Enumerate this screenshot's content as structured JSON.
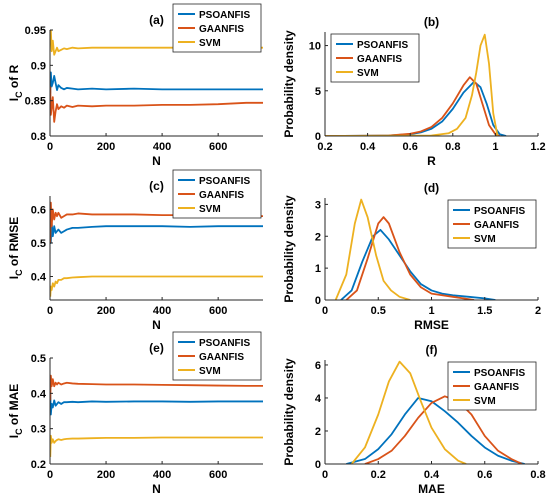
{
  "colors": {
    "psoanfis": "#0072BD",
    "gaanfis": "#D95319",
    "svm": "#EDB120"
  },
  "chart_data": [
    {
      "id": "a",
      "type": "line",
      "title": "(a)",
      "xlabel": "N",
      "ylabel_main": "I",
      "ylabel_sub": "C",
      "ylabel_rest": " of R",
      "xlim": [
        0,
        760
      ],
      "ylim": [
        0.8,
        0.95
      ],
      "xticks": [
        0,
        200,
        400,
        600
      ],
      "xtick_labels": [
        "0",
        "200",
        "400",
        "600"
      ],
      "yticks": [
        0.8,
        0.85,
        0.9,
        0.95
      ],
      "ytick_labels": [
        "0.8",
        "0.85",
        "0.9",
        "0.95"
      ],
      "legend": "top-right",
      "series": [
        {
          "name": "PSOANFIS",
          "color": "#0072BD",
          "x": [
            1,
            3,
            6,
            10,
            15,
            20,
            25,
            30,
            40,
            50,
            60,
            80,
            100,
            150,
            200,
            300,
            400,
            500,
            600,
            700,
            760
          ],
          "y": [
            0.86,
            0.89,
            0.87,
            0.875,
            0.885,
            0.875,
            0.865,
            0.872,
            0.868,
            0.866,
            0.868,
            0.867,
            0.866,
            0.867,
            0.866,
            0.867,
            0.866,
            0.866,
            0.866,
            0.866,
            0.866
          ]
        },
        {
          "name": "GAANFIS",
          "color": "#D95319",
          "x": [
            1,
            3,
            6,
            10,
            15,
            20,
            25,
            30,
            40,
            50,
            60,
            80,
            100,
            150,
            200,
            300,
            400,
            500,
            600,
            700,
            760
          ],
          "y": [
            0.87,
            0.83,
            0.84,
            0.855,
            0.82,
            0.835,
            0.845,
            0.838,
            0.842,
            0.84,
            0.843,
            0.841,
            0.843,
            0.842,
            0.843,
            0.843,
            0.844,
            0.844,
            0.845,
            0.847,
            0.847
          ]
        },
        {
          "name": "SVM",
          "color": "#EDB120",
          "x": [
            1,
            3,
            6,
            10,
            15,
            20,
            25,
            30,
            40,
            50,
            60,
            80,
            100,
            150,
            200,
            300,
            400,
            500,
            600,
            700,
            760
          ],
          "y": [
            0.93,
            0.95,
            0.92,
            0.935,
            0.915,
            0.92,
            0.925,
            0.92,
            0.922,
            0.924,
            0.923,
            0.925,
            0.924,
            0.925,
            0.925,
            0.925,
            0.925,
            0.925,
            0.925,
            0.925,
            0.925
          ]
        }
      ]
    },
    {
      "id": "b",
      "type": "line",
      "title": "(b)",
      "xlabel": "R",
      "ylabel": "Probability density",
      "xlim": [
        0.2,
        1.2
      ],
      "ylim": [
        0,
        11.5
      ],
      "xticks": [
        0.2,
        0.4,
        0.6,
        0.8,
        1.0,
        1.2
      ],
      "xtick_labels": [
        "0.2",
        "0.4",
        "0.6",
        "0.8",
        "1",
        "1.2"
      ],
      "yticks": [
        0,
        5,
        10
      ],
      "ytick_labels": [
        "0",
        "5",
        "10"
      ],
      "legend": "top-left",
      "series": [
        {
          "name": "PSOANFIS",
          "color": "#0072BD",
          "x": [
            0.2,
            0.5,
            0.6,
            0.65,
            0.7,
            0.75,
            0.8,
            0.85,
            0.9,
            0.93,
            0.96,
            0.99,
            1.02,
            1.05
          ],
          "y": [
            0,
            0.05,
            0.2,
            0.4,
            0.8,
            1.6,
            3.0,
            4.8,
            6.0,
            5.4,
            3.5,
            1.2,
            0.2,
            0
          ]
        },
        {
          "name": "GAANFIS",
          "color": "#D95319",
          "x": [
            0.2,
            0.5,
            0.6,
            0.65,
            0.7,
            0.75,
            0.8,
            0.85,
            0.88,
            0.91,
            0.94,
            0.97,
            1.0,
            1.02
          ],
          "y": [
            0,
            0.05,
            0.25,
            0.5,
            1.0,
            2.0,
            3.6,
            5.6,
            6.5,
            5.8,
            3.5,
            1.2,
            0.2,
            0
          ]
        },
        {
          "name": "SVM",
          "color": "#EDB120",
          "x": [
            0.2,
            0.7,
            0.78,
            0.82,
            0.86,
            0.89,
            0.91,
            0.93,
            0.95,
            0.97,
            0.99,
            1.01
          ],
          "y": [
            0,
            0.05,
            0.3,
            0.8,
            2.0,
            4.5,
            7.0,
            10.0,
            11.2,
            8.0,
            2.5,
            0
          ]
        }
      ]
    },
    {
      "id": "c",
      "type": "line",
      "title": "(c)",
      "xlabel": "N",
      "ylabel_main": "I",
      "ylabel_sub": "C",
      "ylabel_rest": " of RMSE",
      "xlim": [
        0,
        760
      ],
      "ylim": [
        0.33,
        0.64
      ],
      "xticks": [
        0,
        200,
        400,
        600
      ],
      "xtick_labels": [
        "0",
        "200",
        "400",
        "600"
      ],
      "yticks": [
        0.4,
        0.5,
        0.6
      ],
      "ytick_labels": [
        "0.4",
        "0.5",
        "0.6"
      ],
      "legend": "top-right",
      "series": [
        {
          "name": "PSOANFIS",
          "color": "#0072BD",
          "x": [
            1,
            3,
            6,
            10,
            15,
            20,
            25,
            30,
            40,
            50,
            60,
            80,
            100,
            150,
            200,
            300,
            400,
            500,
            600,
            700,
            760
          ],
          "y": [
            0.6,
            0.5,
            0.56,
            0.52,
            0.55,
            0.53,
            0.535,
            0.54,
            0.53,
            0.535,
            0.54,
            0.545,
            0.545,
            0.548,
            0.55,
            0.55,
            0.55,
            0.548,
            0.55,
            0.55,
            0.55
          ]
        },
        {
          "name": "GAANFIS",
          "color": "#D95319",
          "x": [
            1,
            3,
            6,
            10,
            15,
            20,
            25,
            30,
            40,
            50,
            60,
            80,
            100,
            150,
            200,
            300,
            400,
            500,
            600,
            700,
            760
          ],
          "y": [
            0.5,
            0.62,
            0.55,
            0.6,
            0.57,
            0.59,
            0.58,
            0.59,
            0.575,
            0.58,
            0.585,
            0.585,
            0.588,
            0.585,
            0.585,
            0.585,
            0.583,
            0.583,
            0.582,
            0.58,
            0.58
          ]
        },
        {
          "name": "SVM",
          "color": "#EDB120",
          "x": [
            1,
            3,
            6,
            10,
            15,
            20,
            25,
            30,
            40,
            50,
            60,
            80,
            100,
            150,
            200,
            300,
            400,
            500,
            600,
            700,
            760
          ],
          "y": [
            0.34,
            0.37,
            0.36,
            0.38,
            0.37,
            0.385,
            0.38,
            0.39,
            0.39,
            0.395,
            0.395,
            0.397,
            0.398,
            0.4,
            0.4,
            0.4,
            0.4,
            0.4,
            0.4,
            0.4,
            0.4
          ]
        }
      ]
    },
    {
      "id": "d",
      "type": "line",
      "title": "(d)",
      "xlabel": "RMSE",
      "ylabel": "Probability density",
      "xlim": [
        0,
        2
      ],
      "ylim": [
        0,
        3.2
      ],
      "xticks": [
        0,
        0.5,
        1.0,
        1.5,
        2.0
      ],
      "xtick_labels": [
        "0",
        "0.5",
        "1",
        "1.5",
        "2"
      ],
      "yticks": [
        0,
        1,
        2,
        3
      ],
      "ytick_labels": [
        "0",
        "1",
        "2",
        "3"
      ],
      "legend": "top-right",
      "series": [
        {
          "name": "PSOANFIS",
          "color": "#0072BD",
          "x": [
            0.15,
            0.25,
            0.35,
            0.45,
            0.52,
            0.6,
            0.7,
            0.8,
            0.9,
            1.0,
            1.1,
            1.2,
            1.35,
            1.5,
            1.6
          ],
          "y": [
            0,
            0.3,
            1.2,
            2.0,
            2.2,
            1.9,
            1.4,
            0.9,
            0.5,
            0.3,
            0.2,
            0.15,
            0.1,
            0.05,
            0
          ]
        },
        {
          "name": "GAANFIS",
          "color": "#D95319",
          "x": [
            0.2,
            0.3,
            0.4,
            0.5,
            0.55,
            0.6,
            0.7,
            0.8,
            0.9,
            1.0,
            1.1,
            1.2,
            1.3,
            1.4
          ],
          "y": [
            0,
            0.3,
            1.3,
            2.4,
            2.6,
            2.4,
            1.5,
            0.8,
            0.4,
            0.2,
            0.15,
            0.1,
            0.05,
            0
          ]
        },
        {
          "name": "SVM",
          "color": "#EDB120",
          "x": [
            0.1,
            0.2,
            0.28,
            0.34,
            0.4,
            0.48,
            0.55,
            0.62,
            0.7,
            0.8
          ],
          "y": [
            0,
            0.8,
            2.4,
            3.15,
            2.6,
            1.4,
            0.6,
            0.3,
            0.1,
            0
          ]
        }
      ]
    },
    {
      "id": "e",
      "type": "line",
      "title": "(e)",
      "xlabel": "N",
      "ylabel_main": "I",
      "ylabel_sub": "C",
      "ylabel_rest": " of MAE",
      "xlim": [
        0,
        760
      ],
      "ylim": [
        0.2,
        0.5
      ],
      "xticks": [
        0,
        200,
        400,
        600
      ],
      "xtick_labels": [
        "0",
        "200",
        "400",
        "600"
      ],
      "yticks": [
        0.2,
        0.3,
        0.4,
        0.5
      ],
      "ytick_labels": [
        "0.2",
        "0.3",
        "0.4",
        "0.5"
      ],
      "legend": "top-right",
      "series": [
        {
          "name": "PSOANFIS",
          "color": "#0072BD",
          "x": [
            1,
            3,
            6,
            10,
            15,
            20,
            25,
            30,
            40,
            50,
            60,
            80,
            100,
            150,
            200,
            300,
            400,
            500,
            600,
            700,
            760
          ],
          "y": [
            0.4,
            0.34,
            0.37,
            0.36,
            0.38,
            0.365,
            0.37,
            0.375,
            0.37,
            0.375,
            0.375,
            0.376,
            0.375,
            0.377,
            0.376,
            0.377,
            0.377,
            0.376,
            0.377,
            0.377,
            0.377
          ]
        },
        {
          "name": "GAANFIS",
          "color": "#D95319",
          "x": [
            1,
            3,
            6,
            10,
            15,
            20,
            25,
            30,
            40,
            50,
            60,
            80,
            100,
            150,
            200,
            300,
            400,
            500,
            600,
            700,
            760
          ],
          "y": [
            0.38,
            0.45,
            0.42,
            0.44,
            0.42,
            0.43,
            0.425,
            0.43,
            0.425,
            0.428,
            0.43,
            0.428,
            0.427,
            0.426,
            0.425,
            0.425,
            0.424,
            0.423,
            0.422,
            0.421,
            0.421
          ]
        },
        {
          "name": "SVM",
          "color": "#EDB120",
          "x": [
            1,
            3,
            6,
            10,
            15,
            20,
            25,
            30,
            40,
            50,
            60,
            80,
            100,
            150,
            200,
            300,
            400,
            500,
            600,
            700,
            760
          ],
          "y": [
            0.22,
            0.28,
            0.26,
            0.27,
            0.26,
            0.265,
            0.268,
            0.27,
            0.268,
            0.27,
            0.271,
            0.272,
            0.272,
            0.273,
            0.274,
            0.274,
            0.275,
            0.275,
            0.275,
            0.275,
            0.275
          ]
        }
      ]
    },
    {
      "id": "f",
      "type": "line",
      "title": "(f)",
      "xlabel": "MAE",
      "ylabel": "Probability density",
      "xlim": [
        0,
        0.8
      ],
      "ylim": [
        0,
        6.3
      ],
      "xticks": [
        0,
        0.2,
        0.4,
        0.6,
        0.8
      ],
      "xtick_labels": [
        "0",
        "0.2",
        "0.4",
        "0.6",
        "0.8"
      ],
      "yticks": [
        0,
        2,
        4,
        6
      ],
      "ytick_labels": [
        "0",
        "2",
        "4",
        "6"
      ],
      "legend": "top-right",
      "series": [
        {
          "name": "PSOANFIS",
          "color": "#0072BD",
          "x": [
            0.08,
            0.15,
            0.2,
            0.25,
            0.3,
            0.35,
            0.4,
            0.45,
            0.5,
            0.55,
            0.6,
            0.65,
            0.7,
            0.75
          ],
          "y": [
            0,
            0.3,
            0.9,
            1.8,
            3.0,
            4.0,
            3.8,
            3.2,
            2.5,
            1.7,
            1.0,
            0.5,
            0.2,
            0
          ]
        },
        {
          "name": "GAANFIS",
          "color": "#D95319",
          "x": [
            0.15,
            0.2,
            0.25,
            0.3,
            0.35,
            0.4,
            0.45,
            0.5,
            0.55,
            0.6,
            0.65,
            0.7,
            0.74
          ],
          "y": [
            0,
            0.3,
            0.8,
            1.7,
            2.8,
            3.7,
            4.1,
            3.8,
            3.0,
            1.7,
            0.8,
            0.3,
            0
          ]
        },
        {
          "name": "SVM",
          "color": "#EDB120",
          "x": [
            0.1,
            0.15,
            0.2,
            0.24,
            0.28,
            0.32,
            0.36,
            0.4,
            0.45,
            0.5,
            0.53
          ],
          "y": [
            0,
            1.0,
            3.0,
            5.0,
            6.2,
            5.5,
            3.8,
            2.2,
            0.9,
            0.2,
            0
          ]
        }
      ]
    }
  ]
}
